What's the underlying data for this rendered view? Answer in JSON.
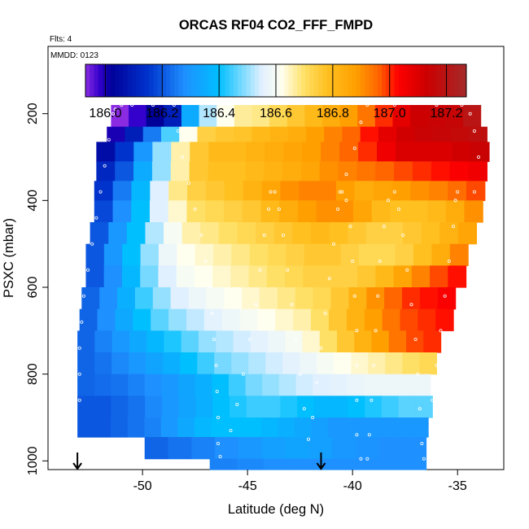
{
  "chart_data": {
    "type": "heatmap",
    "title": "ORCAS RF04 CO2_FFF_FMPD",
    "top_note": "Flts: 4",
    "inner_note": "MMDD: 0123",
    "xlabel": "Latitude (deg N)",
    "ylabel": "PSXC (mbar)",
    "x_ticks": [
      -50,
      -45,
      -40,
      -35
    ],
    "y_ticks": [
      200,
      400,
      600,
      800,
      1000
    ],
    "xlim": [
      -54.5,
      -32.8
    ],
    "ylim": [
      1020,
      45
    ],
    "y_inverted": true,
    "grid": false,
    "colorbar": {
      "ticks": [
        186.0,
        186.2,
        186.4,
        186.6,
        186.8,
        187.0,
        187.2
      ],
      "tick_labels": [
        "186.0",
        "186.2",
        "186.4",
        "186.6",
        "186.8",
        "187.0",
        "187.2"
      ],
      "range": [
        185.93,
        187.27
      ],
      "stops": [
        {
          "v": 185.93,
          "c": "#8a2be2"
        },
        {
          "v": 185.98,
          "c": "#3300cc"
        },
        {
          "v": 186.02,
          "c": "#000099"
        },
        {
          "v": 186.15,
          "c": "#0033cc"
        },
        {
          "v": 186.28,
          "c": "#1e90ff"
        },
        {
          "v": 186.4,
          "c": "#00bfff"
        },
        {
          "v": 186.55,
          "c": "#e0f0ff"
        },
        {
          "v": 186.62,
          "c": "#fffff0"
        },
        {
          "v": 186.7,
          "c": "#ffe066"
        },
        {
          "v": 186.78,
          "c": "#ffc020"
        },
        {
          "v": 186.88,
          "c": "#ffa000"
        },
        {
          "v": 186.96,
          "c": "#ff6600"
        },
        {
          "v": 187.03,
          "c": "#ff0000"
        },
        {
          "v": 187.13,
          "c": "#cc0000"
        },
        {
          "v": 187.27,
          "c": "#a52a2a"
        }
      ]
    },
    "layers": [
      {
        "p_top": 180,
        "p_bot": 230,
        "lat_min": -51.5,
        "lat_max": -33.9,
        "values": [
          185.93,
          185.98,
          186.02,
          186.1,
          186.35,
          186.52,
          186.62,
          186.67,
          186.68,
          186.72,
          186.76,
          186.8,
          186.84,
          186.88,
          186.94,
          187.0,
          187.08,
          187.13,
          187.14,
          187.15,
          187.2
        ]
      },
      {
        "p_top": 230,
        "p_bot": 265,
        "lat_min": -51.7,
        "lat_max": -33.6,
        "values": [
          186.0,
          186.1,
          186.25,
          186.45,
          186.62,
          186.74,
          186.76,
          186.77,
          186.8,
          186.82,
          186.84,
          186.88,
          186.92,
          186.96,
          187.02,
          187.08,
          187.12,
          187.14,
          187.15,
          187.16,
          187.18
        ]
      },
      {
        "p_top": 265,
        "p_bot": 310,
        "lat_min": -52.2,
        "lat_max": -33.5,
        "values": [
          186.05,
          186.15,
          186.3,
          186.5,
          186.66,
          186.76,
          186.8,
          186.8,
          186.82,
          186.84,
          186.86,
          186.88,
          186.92,
          186.96,
          187.0,
          187.06,
          187.1,
          187.1,
          187.1,
          187.12,
          187.14
        ]
      },
      {
        "p_top": 310,
        "p_bot": 355,
        "lat_min": -52.2,
        "lat_max": -33.6,
        "values": [
          186.12,
          186.2,
          186.35,
          186.5,
          186.66,
          186.76,
          186.78,
          186.78,
          186.8,
          186.82,
          186.84,
          186.86,
          186.9,
          186.92,
          186.94,
          186.96,
          186.98,
          187.0,
          187.02,
          187.04,
          187.06
        ]
      },
      {
        "p_top": 355,
        "p_bot": 400,
        "lat_min": -52.3,
        "lat_max": -33.7,
        "values": [
          186.15,
          186.25,
          186.38,
          186.55,
          186.68,
          186.74,
          186.76,
          186.78,
          186.82,
          186.86,
          186.9,
          186.92,
          186.92,
          186.88,
          186.84,
          186.86,
          186.88,
          186.9,
          186.92,
          186.95,
          186.98
        ]
      },
      {
        "p_top": 400,
        "p_bot": 450,
        "lat_min": -52.3,
        "lat_max": -33.8,
        "values": [
          186.18,
          186.28,
          186.4,
          186.55,
          186.64,
          186.7,
          186.72,
          186.74,
          186.76,
          186.8,
          186.84,
          186.88,
          186.9,
          186.9,
          186.86,
          186.8,
          186.78,
          186.78,
          186.8,
          186.84,
          186.9
        ]
      },
      {
        "p_top": 450,
        "p_bot": 500,
        "lat_min": -52.5,
        "lat_max": -34.1,
        "values": [
          186.2,
          186.3,
          186.4,
          186.52,
          186.6,
          186.66,
          186.68,
          186.7,
          186.72,
          186.74,
          186.76,
          186.78,
          186.8,
          186.78,
          186.76,
          186.74,
          186.74,
          186.76,
          186.78,
          186.82,
          186.86
        ]
      },
      {
        "p_top": 500,
        "p_bot": 550,
        "lat_min": -52.7,
        "lat_max": -34.5,
        "values": [
          186.2,
          186.3,
          186.4,
          186.5,
          186.58,
          186.62,
          186.64,
          186.66,
          186.68,
          186.7,
          186.72,
          186.74,
          186.76,
          186.76,
          186.74,
          186.72,
          186.72,
          186.74,
          186.78,
          186.84,
          186.92
        ]
      },
      {
        "p_top": 550,
        "p_bot": 600,
        "lat_min": -52.7,
        "lat_max": -34.6,
        "values": [
          186.2,
          186.28,
          186.38,
          186.48,
          186.55,
          186.6,
          186.62,
          186.64,
          186.66,
          186.68,
          186.7,
          186.72,
          186.74,
          186.74,
          186.74,
          186.76,
          186.8,
          186.86,
          186.92,
          186.98,
          187.02
        ]
      },
      {
        "p_top": 600,
        "p_bot": 650,
        "lat_min": -52.9,
        "lat_max": -35.1,
        "values": [
          186.22,
          186.28,
          186.36,
          186.44,
          186.5,
          186.55,
          186.58,
          186.6,
          186.62,
          186.64,
          186.66,
          186.68,
          186.7,
          186.72,
          186.76,
          186.82,
          186.9,
          186.96,
          187.0,
          187.02,
          187.04
        ]
      },
      {
        "p_top": 650,
        "p_bot": 700,
        "lat_min": -53.0,
        "lat_max": -35.2,
        "values": [
          186.22,
          186.28,
          186.34,
          186.4,
          186.46,
          186.5,
          186.53,
          186.56,
          186.58,
          186.6,
          186.62,
          186.64,
          186.66,
          186.7,
          186.76,
          186.82,
          186.88,
          186.94,
          186.98,
          187.0,
          187.02
        ]
      },
      {
        "p_top": 700,
        "p_bot": 750,
        "lat_min": -53.1,
        "lat_max": -35.8,
        "values": [
          186.22,
          186.26,
          186.3,
          186.34,
          186.38,
          186.42,
          186.46,
          186.5,
          186.52,
          186.54,
          186.56,
          186.58,
          186.6,
          186.64,
          186.7,
          186.76,
          186.82,
          186.88,
          186.94,
          186.98,
          187.0
        ]
      },
      {
        "p_top": 750,
        "p_bot": 800,
        "lat_min": -53.1,
        "lat_max": -36.0,
        "values": [
          186.22,
          186.24,
          186.27,
          186.3,
          186.33,
          186.36,
          186.4,
          186.44,
          186.48,
          186.5,
          186.52,
          186.54,
          186.56,
          186.58,
          186.6,
          186.62,
          186.64,
          186.66,
          186.68,
          186.7,
          186.72
        ]
      },
      {
        "p_top": 800,
        "p_bot": 850,
        "lat_min": -53.1,
        "lat_max": -36.3,
        "values": [
          186.22,
          186.23,
          186.24,
          186.26,
          186.28,
          186.3,
          186.33,
          186.36,
          186.4,
          186.44,
          186.48,
          186.5,
          186.52,
          186.54,
          186.55,
          186.56,
          186.57,
          186.58,
          186.58,
          186.58,
          186.58
        ]
      },
      {
        "p_top": 850,
        "p_bot": 900,
        "lat_min": -53.1,
        "lat_max": -36.2,
        "values": [
          186.2,
          186.2,
          186.22,
          186.24,
          186.27,
          186.3,
          186.33,
          186.36,
          186.4,
          186.42,
          186.44,
          186.44,
          186.42,
          186.4,
          186.38,
          186.38,
          186.4,
          186.42,
          186.44,
          186.46,
          186.46
        ]
      },
      {
        "p_top": 900,
        "p_bot": 945,
        "lat_min": -53.1,
        "lat_max": -36.4,
        "values": [
          186.2,
          186.2,
          186.22,
          186.24,
          186.26,
          186.3,
          186.34,
          186.38,
          186.4,
          186.4,
          186.4,
          186.38,
          186.36,
          186.34,
          186.32,
          186.3,
          186.3,
          186.3,
          186.3,
          186.3,
          186.3
        ]
      },
      {
        "p_top": 945,
        "p_bot": 995,
        "lat_min": -49.9,
        "lat_max": -36.5,
        "values": [
          186.22,
          186.24,
          186.26,
          186.28,
          186.3,
          186.32,
          186.33,
          186.32,
          186.3,
          186.29,
          186.28,
          186.28
        ]
      },
      {
        "p_top": 995,
        "p_bot": 1020,
        "lat_min": -46.8,
        "lat_max": -36.5,
        "values": [
          186.26,
          186.27,
          186.28,
          186.28,
          186.28,
          186.28,
          186.28,
          186.28
        ]
      }
    ],
    "flight_track": [
      [
        -51.4,
        200
      ],
      [
        -51.3,
        190
      ],
      [
        -51.0,
        180
      ],
      [
        -50.5,
        180
      ],
      [
        -49.5,
        180
      ],
      [
        -48.5,
        180
      ],
      [
        -48.3,
        240
      ],
      [
        -48.1,
        300
      ],
      [
        -47.8,
        360
      ],
      [
        -47.5,
        420
      ],
      [
        -47.2,
        480
      ],
      [
        -47.0,
        540
      ],
      [
        -46.8,
        600
      ],
      [
        -46.7,
        660
      ],
      [
        -46.6,
        720
      ],
      [
        -46.5,
        780
      ],
      [
        -46.45,
        840
      ],
      [
        -46.4,
        900
      ],
      [
        -46.4,
        960
      ],
      [
        -46.3,
        990
      ],
      [
        -45.8,
        930
      ],
      [
        -45.5,
        870
      ],
      [
        -45.2,
        800
      ],
      [
        -44.9,
        720
      ],
      [
        -44.6,
        640
      ],
      [
        -44.4,
        560
      ],
      [
        -44.2,
        480
      ],
      [
        -44.0,
        420
      ],
      [
        -43.9,
        380
      ],
      [
        -43.7,
        380
      ],
      [
        -43.5,
        420
      ],
      [
        -43.3,
        480
      ],
      [
        -43.1,
        560
      ],
      [
        -42.9,
        640
      ],
      [
        -42.7,
        720
      ],
      [
        -42.5,
        800
      ],
      [
        -42.3,
        880
      ],
      [
        -42.1,
        950
      ],
      [
        -41.9,
        900
      ],
      [
        -41.7,
        820
      ],
      [
        -41.5,
        740
      ],
      [
        -41.3,
        660
      ],
      [
        -41.1,
        580
      ],
      [
        -40.9,
        500
      ],
      [
        -40.7,
        420
      ],
      [
        -40.5,
        380
      ],
      [
        -40.3,
        400
      ],
      [
        -40.1,
        460
      ],
      [
        -40.0,
        540
      ],
      [
        -39.9,
        620
      ],
      [
        -39.8,
        700
      ],
      [
        -39.8,
        780
      ],
      [
        -39.8,
        860
      ],
      [
        -39.8,
        940
      ],
      [
        -39.6,
        995
      ],
      [
        -39.3,
        995
      ],
      [
        -39.2,
        940
      ],
      [
        -39.1,
        860
      ],
      [
        -39.0,
        780
      ],
      [
        -38.9,
        700
      ],
      [
        -38.8,
        620
      ],
      [
        -38.7,
        540
      ],
      [
        -38.5,
        460
      ],
      [
        -38.3,
        400
      ],
      [
        -38.0,
        380
      ],
      [
        -37.8,
        420
      ],
      [
        -37.6,
        480
      ],
      [
        -37.4,
        560
      ],
      [
        -37.2,
        640
      ],
      [
        -37.0,
        720
      ],
      [
        -36.9,
        800
      ],
      [
        -36.8,
        880
      ],
      [
        -36.7,
        960
      ],
      [
        -36.6,
        995
      ],
      [
        -36.4,
        995
      ],
      [
        -36.3,
        930
      ],
      [
        -36.2,
        860
      ],
      [
        -36.0,
        780
      ],
      [
        -35.8,
        700
      ],
      [
        -35.6,
        620
      ],
      [
        -35.4,
        540
      ],
      [
        -35.2,
        460
      ],
      [
        -35.1,
        400
      ],
      [
        -35.0,
        380
      ],
      [
        -34.2,
        380
      ],
      [
        -34.0,
        300
      ],
      [
        -34.2,
        240
      ],
      [
        -34.4,
        200
      ],
      [
        -34.8,
        180
      ],
      [
        -36.0,
        180
      ],
      [
        -38.0,
        180
      ],
      [
        -39.3,
        180
      ],
      [
        -39.6,
        220
      ],
      [
        -39.9,
        280
      ],
      [
        -40.3,
        340
      ],
      [
        -40.6,
        380
      ],
      [
        -51.6,
        260
      ],
      [
        -51.8,
        320
      ],
      [
        -52.0,
        380
      ],
      [
        -52.2,
        440
      ],
      [
        -52.4,
        500
      ],
      [
        -52.6,
        560
      ],
      [
        -52.8,
        620
      ],
      [
        -52.9,
        680
      ],
      [
        -53.0,
        740
      ],
      [
        -53.0,
        800
      ],
      [
        -53.0,
        860
      ]
    ],
    "arrows": [
      {
        "lat": -53.1,
        "label": ""
      },
      {
        "lat": -41.5,
        "label": ""
      }
    ]
  }
}
